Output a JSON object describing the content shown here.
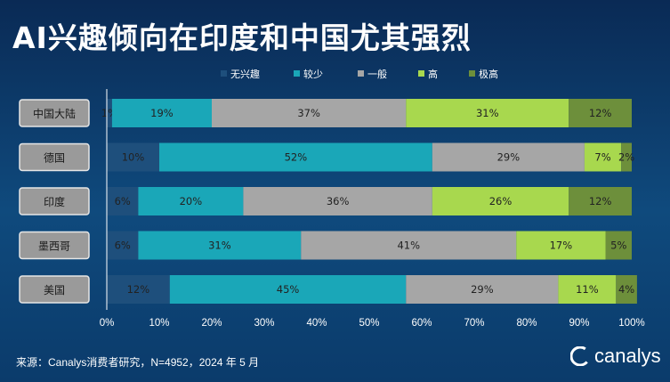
{
  "header": {
    "title": "AI兴趣倾向在印度和中国尤其强烈"
  },
  "footer": {
    "source": "来源：Canalys消费者研究，N=4952，2024 年 5 月"
  },
  "brand": {
    "name": "canalys",
    "icon": "canalys-logo-icon"
  },
  "colors": {
    "background": "#0b3a66",
    "series": [
      "#1e4f7c",
      "#1aa7b8",
      "#a6a6a6",
      "#a8d84e",
      "#6d8f3b"
    ]
  },
  "chart_data": {
    "type": "bar",
    "orientation": "horizontal",
    "stacked": true,
    "categories": [
      "中国大陆",
      "德国",
      "印度",
      "墨西哥",
      "美国"
    ],
    "series": [
      {
        "name": "无兴趣",
        "values": [
          1,
          10,
          6,
          6,
          12
        ]
      },
      {
        "name": "较少",
        "values": [
          19,
          52,
          20,
          31,
          45
        ]
      },
      {
        "name": "一般",
        "values": [
          37,
          29,
          36,
          41,
          29
        ]
      },
      {
        "name": "高",
        "values": [
          31,
          7,
          26,
          17,
          11
        ]
      },
      {
        "name": "极高",
        "values": [
          12,
          2,
          12,
          5,
          4
        ]
      }
    ],
    "xlim": [
      0,
      100
    ],
    "xticks": [
      "0%",
      "10%",
      "20%",
      "30%",
      "40%",
      "50%",
      "60%",
      "70%",
      "80%",
      "90%",
      "100%"
    ],
    "value_suffix": "%",
    "legend_position": "top",
    "grid": false
  }
}
